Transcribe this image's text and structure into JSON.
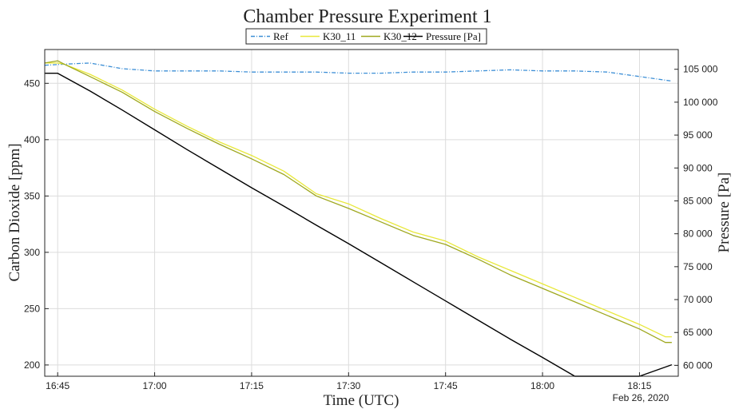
{
  "chart_data": {
    "type": "line",
    "title": "Chamber Pressure Experiment 1",
    "xlabel": "Time (UTC)",
    "ylabel": "Carbon Dioxide [ppm]",
    "ylabel_right": "Pressure [Pa]",
    "date_label": "Feb 26, 2020",
    "x_ticks": [
      "16:45",
      "17:00",
      "17:15",
      "17:30",
      "17:45",
      "18:00",
      "18:15"
    ],
    "xlim": [
      "16:43",
      "18:21"
    ],
    "ylim": [
      190,
      480
    ],
    "ylim_right": [
      58350,
      108000
    ],
    "y_ticks": [
      200,
      250,
      300,
      350,
      400,
      450
    ],
    "y_ticks_right": [
      60000,
      65000,
      70000,
      75000,
      80000,
      85000,
      90000,
      95000,
      100000,
      105000
    ],
    "y_ticks_right_labels": [
      "60 000",
      "65 000",
      "70 000",
      "75 000",
      "80 000",
      "85 000",
      "90 000",
      "95 000",
      "100 000",
      "105 000"
    ],
    "grid": true,
    "legend": "top-center",
    "colors": {
      "ref": "#3d8fd6",
      "k30_11": "#e8e83a",
      "k30_12": "#9fa81f",
      "pressure": "#000000"
    },
    "series": [
      {
        "name": "Ref",
        "axis": "left",
        "style": "dashdot",
        "x": [
          "16:43",
          "16:46",
          "16:50",
          "16:55",
          "17:00",
          "17:05",
          "17:10",
          "17:15",
          "17:20",
          "17:25",
          "17:30",
          "17:35",
          "17:40",
          "17:45",
          "17:50",
          "17:55",
          "18:00",
          "18:05",
          "18:10",
          "18:15",
          "18:20"
        ],
        "y": [
          466,
          467,
          468,
          463,
          461,
          461,
          461,
          460,
          460,
          460,
          459,
          459,
          460,
          460,
          461,
          462,
          461,
          461,
          460,
          456,
          452
        ]
      },
      {
        "name": "K30_11",
        "axis": "left",
        "style": "solid",
        "x": [
          "16:43",
          "16:45",
          "16:46",
          "16:50",
          "16:55",
          "17:00",
          "17:05",
          "17:10",
          "17:15",
          "17:20",
          "17:25",
          "17:30",
          "17:35",
          "17:40",
          "17:45",
          "17:50",
          "17:55",
          "18:00",
          "18:05",
          "18:10",
          "18:15",
          "18:19",
          "18:20"
        ],
        "y": [
          468,
          468,
          467,
          458,
          444,
          427,
          412,
          398,
          386,
          372,
          352,
          343,
          330,
          318,
          310,
          296,
          284,
          272,
          260,
          248,
          236,
          225,
          225
        ]
      },
      {
        "name": "K30_12",
        "axis": "left",
        "style": "solid",
        "x": [
          "16:43",
          "16:45",
          "16:46",
          "16:50",
          "16:55",
          "17:00",
          "17:05",
          "17:10",
          "17:15",
          "17:20",
          "17:25",
          "17:30",
          "17:35",
          "17:40",
          "17:45",
          "17:50",
          "17:55",
          "18:00",
          "18:05",
          "18:10",
          "18:15",
          "18:19",
          "18:20"
        ],
        "y": [
          468,
          470,
          467,
          456,
          442,
          425,
          410,
          396,
          383,
          369,
          350,
          339,
          327,
          315,
          307,
          294,
          280,
          268,
          256,
          244,
          232,
          220,
          220
        ]
      },
      {
        "name": "Pressure [Pa]",
        "axis": "right",
        "style": "solid",
        "x": [
          "16:43",
          "16:45",
          "16:50",
          "16:55",
          "17:00",
          "17:05",
          "17:10",
          "17:15",
          "17:20",
          "17:25",
          "17:30",
          "17:35",
          "17:40",
          "17:45",
          "17:50",
          "17:55",
          "18:00",
          "18:05",
          "18:10",
          "18:15",
          "18:20"
        ],
        "y": [
          104400,
          104400,
          101700,
          98800,
          95800,
          92800,
          89900,
          87000,
          84200,
          81300,
          78500,
          75600,
          72700,
          69800,
          66900,
          64000,
          61200,
          58300,
          55500,
          52600,
          60100
        ]
      }
    ]
  }
}
